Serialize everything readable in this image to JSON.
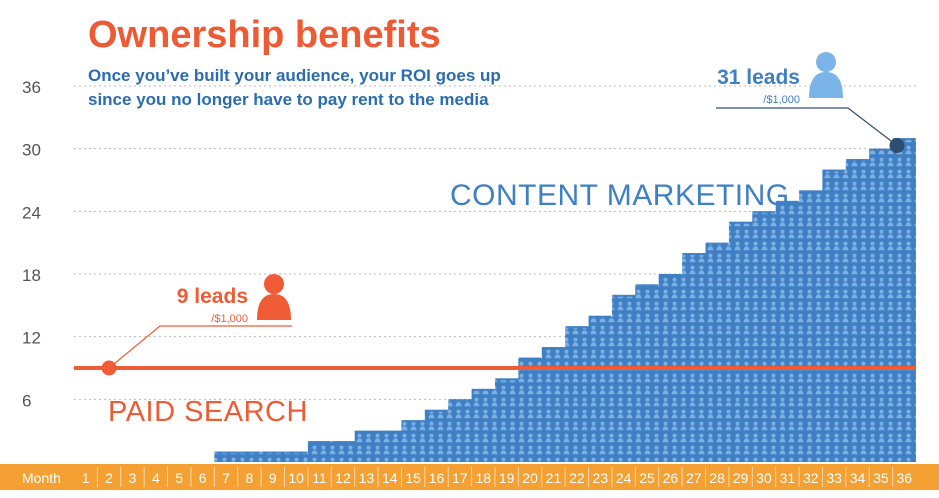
{
  "title": "Ownership benefits",
  "subtitle_lines": [
    "Once you’ve built your audience, your ROI goes up",
    "since you no longer have to pay rent to the media"
  ],
  "colors": {
    "blue": "#3f7fc4",
    "blue_dark": "#2d5f99",
    "person_light": "#7fb0e3",
    "orange": "#ef5b34",
    "axis_bar": "#f5a033",
    "grid": "#bbbbbb",
    "tick_text": "#555555",
    "callout_blue_icon": "#7ab4e8",
    "callout_dot_blue": "#2e4f72"
  },
  "chart_data": {
    "type": "area",
    "title": "Ownership benefits",
    "xlabel": "Month",
    "ylabel": "",
    "x": [
      1,
      2,
      3,
      4,
      5,
      6,
      7,
      8,
      9,
      10,
      11,
      12,
      13,
      14,
      15,
      16,
      17,
      18,
      19,
      20,
      21,
      22,
      23,
      24,
      25,
      26,
      27,
      28,
      29,
      30,
      31,
      32,
      33,
      34,
      35,
      36
    ],
    "ylim": [
      0,
      36
    ],
    "yticks": [
      6,
      12,
      18,
      24,
      30,
      36
    ],
    "series": [
      {
        "name": "CONTENT MARKETING",
        "values": [
          0,
          0,
          0,
          0,
          0,
          0,
          1,
          1,
          1,
          1,
          2,
          2,
          3,
          3,
          4,
          5,
          6,
          7,
          8,
          10,
          11,
          13,
          14,
          16,
          17,
          18,
          20,
          21,
          23,
          24,
          25,
          26,
          28,
          29,
          30,
          31
        ]
      },
      {
        "name": "PAID SEARCH",
        "values": [
          9,
          9,
          9,
          9,
          9,
          9,
          9,
          9,
          9,
          9,
          9,
          9,
          9,
          9,
          9,
          9,
          9,
          9,
          9,
          9,
          9,
          9,
          9,
          9,
          9,
          9,
          9,
          9,
          9,
          9,
          9,
          9,
          9,
          9,
          9,
          9
        ]
      }
    ],
    "annotations": [
      {
        "label": "9 leads",
        "sublabel": "/$1,000",
        "series": "PAID SEARCH",
        "x": 2,
        "y": 9
      },
      {
        "label": "31 leads",
        "sublabel": "/$1,000",
        "series": "CONTENT MARKETING",
        "x": 35.5,
        "y": 30.3
      }
    ]
  }
}
